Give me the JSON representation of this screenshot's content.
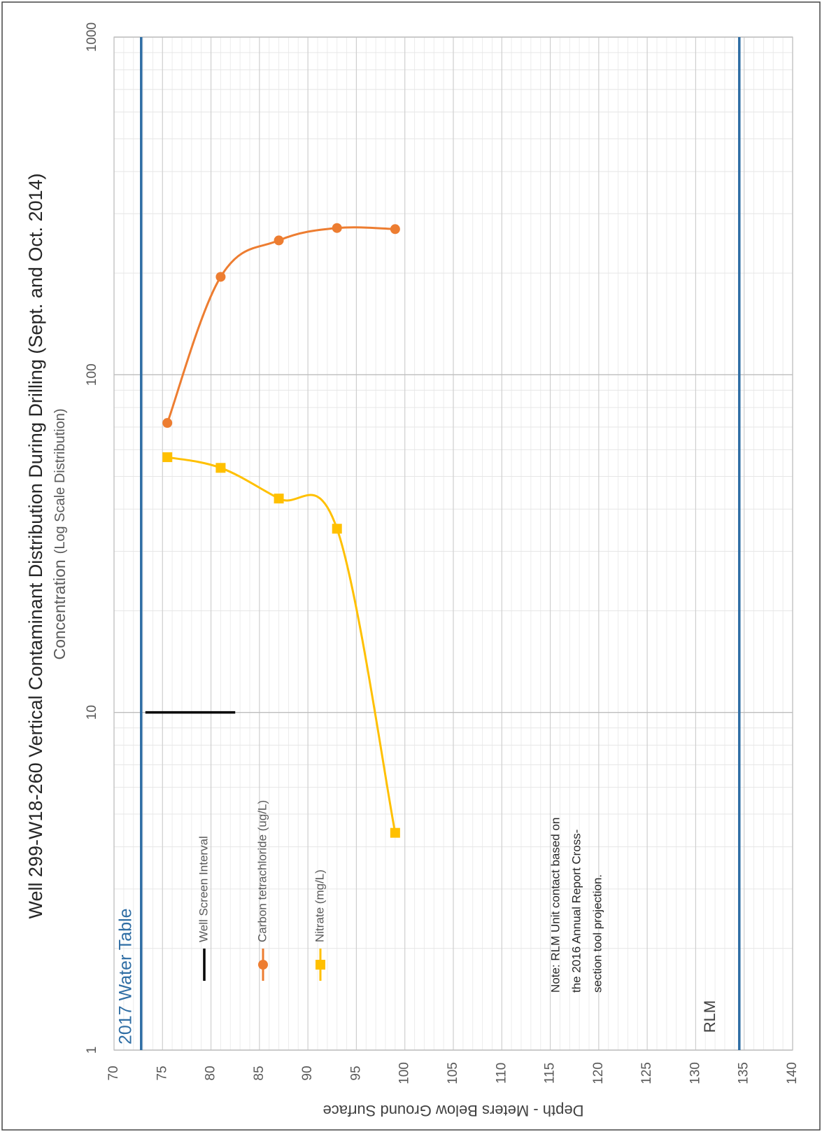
{
  "chart_data": {
    "type": "line",
    "orientation": "rotated 90 degrees counter-clockwise",
    "title": "Well 299-W18-260 Vertical Contaminant Distribution During Drilling (Sept. and Oct. 2014)",
    "subtitle_main": "Concentration",
    "subtitle_paren": "(Log Scale Distribution)",
    "xlabel": "Depth  - Meters Below Ground Surface",
    "xlim": [
      70,
      140
    ],
    "xticks": [
      "70",
      "75",
      "80",
      "85",
      "90",
      "95",
      "100",
      "105",
      "110",
      "115",
      "120",
      "125",
      "130",
      "135",
      "140"
    ],
    "ylabel": "Concentration (Log Scale Distribution)",
    "yscale": "log",
    "ylim": [
      1,
      1000
    ],
    "yticks": [
      "1",
      "10",
      "100",
      "1000"
    ],
    "grid": true,
    "legend_position": "lower-left",
    "series": [
      {
        "name": "Carbon tetrachloride (ug/L)",
        "color": "#ED7D31",
        "marker": "circle",
        "x": [
          75.5,
          81,
          87,
          93,
          99
        ],
        "y": [
          72,
          195,
          250,
          272,
          270
        ]
      },
      {
        "name": "Nitrate (mg/L)",
        "color": "#FFC000",
        "marker": "square",
        "x": [
          75.5,
          81,
          87,
          93,
          99
        ],
        "y": [
          57,
          53,
          43,
          35,
          4.4
        ]
      }
    ],
    "annotations": {
      "well_screen": {
        "label": "Well Screen Interval",
        "depth_from": 72.8,
        "depth_to": 82.5,
        "value": 10,
        "color": "#000000"
      },
      "water_table": {
        "label": "2017 Water Table",
        "depth": 72.8,
        "color": "#2E6DA4"
      },
      "rlm": {
        "label": "RLM",
        "depth": 134.5,
        "color": "#2E6DA4"
      },
      "note": [
        "Note: RLM Unit contact based on",
        "the 2016 Annual Report Cross-",
        "section tool projection."
      ]
    }
  }
}
